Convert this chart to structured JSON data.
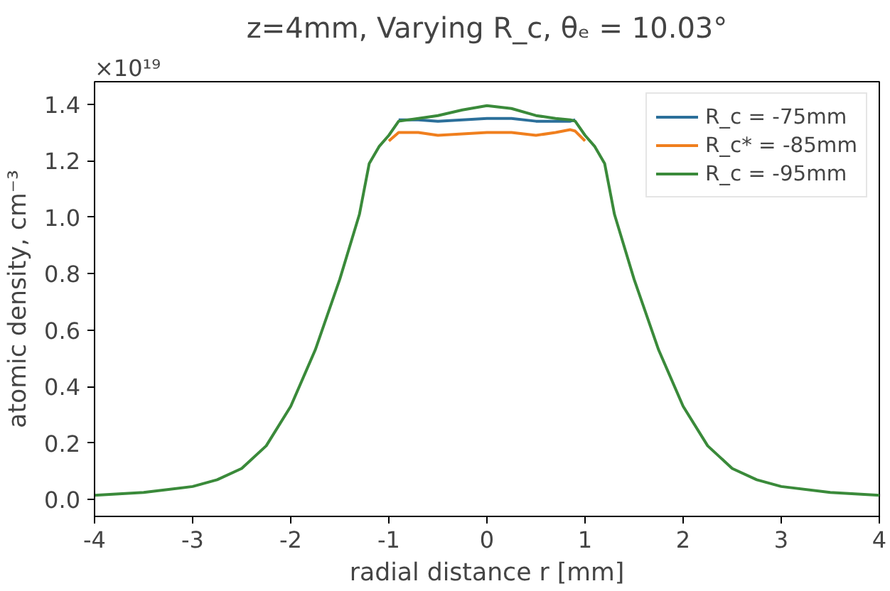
{
  "chart_data": {
    "type": "line",
    "title": "z=4mm, Varying R_c, θₑ = 10.03°",
    "xlabel": "radial distance r [mm]",
    "ylabel": "atomic density, cm⁻³",
    "annotations": [
      "×10¹⁹"
    ],
    "x": [
      -4,
      -3.5,
      -3,
      -2.75,
      -2.5,
      -2.25,
      -2,
      -1.75,
      -1.5,
      -1.3,
      -1.2,
      -1.1,
      -1.0,
      -0.9,
      -0.7,
      -0.5,
      -0.25,
      0,
      0.25,
      0.5,
      0.7,
      0.85,
      0.9,
      1.0,
      1.1,
      1.2,
      1.3,
      1.5,
      1.75,
      2,
      2.25,
      2.5,
      2.75,
      3,
      3.5,
      4
    ],
    "series": [
      {
        "name": "R_c = -75mm",
        "color": "#2b6f9a",
        "values": [
          null,
          null,
          null,
          null,
          null,
          null,
          null,
          null,
          null,
          null,
          null,
          null,
          null,
          1.345,
          1.345,
          1.34,
          1.345,
          1.35,
          1.35,
          1.34,
          1.34,
          1.34,
          1.345,
          null,
          null,
          null,
          null,
          null,
          null,
          null,
          null,
          null,
          null,
          null,
          null,
          null
        ]
      },
      {
        "name": "R_c* = -85mm",
        "color": "#f07f1e",
        "values": [
          null,
          null,
          null,
          null,
          null,
          null,
          null,
          null,
          null,
          null,
          null,
          null,
          1.27,
          1.3,
          1.3,
          1.29,
          1.295,
          1.3,
          1.3,
          1.29,
          1.3,
          1.31,
          1.305,
          1.27,
          null,
          null,
          null,
          null,
          null,
          null,
          null,
          null,
          null,
          null,
          null,
          null
        ]
      },
      {
        "name": "R_c = -95mm",
        "color": "#3a8a3a",
        "values": [
          0.015,
          0.025,
          0.046,
          0.07,
          0.11,
          0.19,
          0.33,
          0.53,
          0.78,
          1.01,
          1.19,
          1.25,
          1.29,
          1.34,
          1.35,
          1.36,
          1.38,
          1.395,
          1.385,
          1.36,
          1.35,
          1.345,
          1.34,
          1.29,
          1.25,
          1.19,
          1.01,
          0.78,
          0.53,
          0.33,
          0.19,
          0.11,
          0.07,
          0.046,
          0.025,
          0.015
        ]
      }
    ],
    "xlim": [
      -4,
      4
    ],
    "xticks": [
      -4,
      -3,
      -2,
      -1,
      0,
      1,
      2,
      3,
      4
    ],
    "ylim": [
      -0.06,
      1.48
    ],
    "yticks": [
      {
        "value": 0,
        "label": "0.0"
      },
      0.2,
      0.4,
      0.6,
      0.8,
      {
        "value": 1,
        "label": "1.0"
      },
      1.2,
      1.4
    ],
    "grid": false,
    "legend": "top right"
  }
}
